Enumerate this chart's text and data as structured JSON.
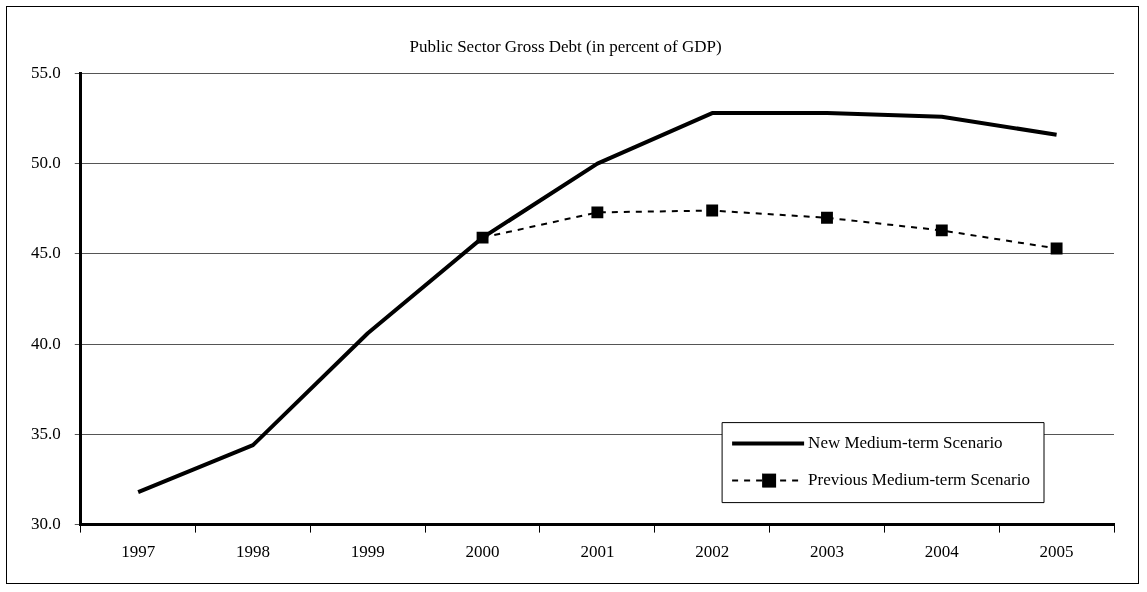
{
  "chart_data": {
    "type": "line",
    "title": "Public Sector Gross Debt (in percent of GDP)",
    "categories": [
      "1997",
      "1998",
      "1999",
      "2000",
      "2001",
      "2002",
      "2003",
      "2004",
      "2005"
    ],
    "series": [
      {
        "name": "New Medium-term Scenario",
        "color": "#000000",
        "values": [
          31.8,
          34.4,
          40.6,
          45.9,
          50.0,
          52.8,
          52.8,
          52.6,
          51.6
        ],
        "marker": "none",
        "line_style": "solid"
      },
      {
        "name": "Previous Medium-term Scenario",
        "color": "#000000",
        "values": [
          null,
          null,
          null,
          45.9,
          47.3,
          47.4,
          47.0,
          46.3,
          45.3
        ],
        "marker": "square",
        "line_style": "dashed"
      }
    ],
    "ylim": [
      30,
      55
    ],
    "yticks": [
      {
        "value": 30,
        "label": "30.0"
      },
      {
        "value": 35,
        "label": "35.0"
      },
      {
        "value": 40,
        "label": "40.0"
      },
      {
        "value": 45,
        "label": "45.0"
      },
      {
        "value": 50,
        "label": "50.0"
      },
      {
        "value": 55,
        "label": "55.0"
      }
    ],
    "grid": "y",
    "legend": "bottom right"
  }
}
